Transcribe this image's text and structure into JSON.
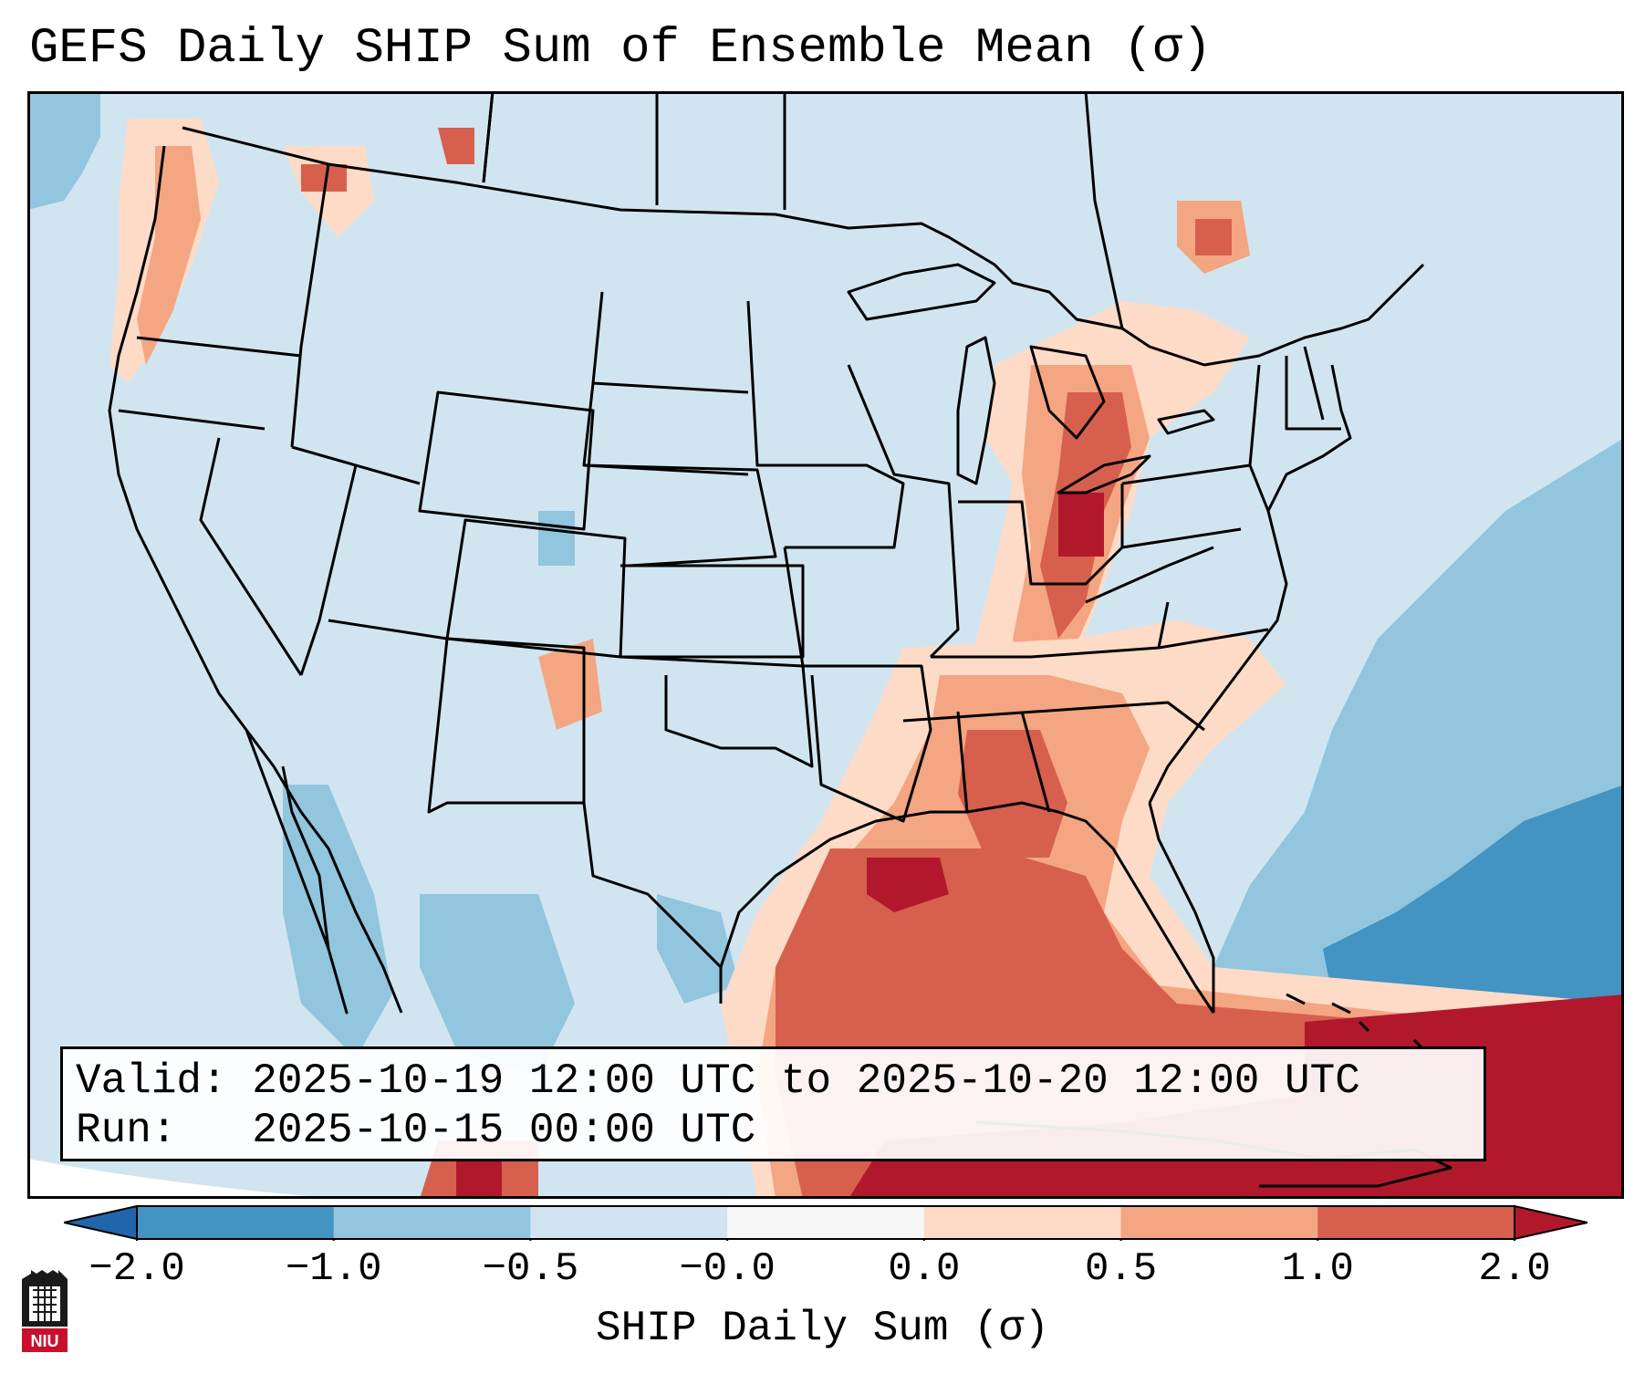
{
  "title": "GEFS Daily SHIP Sum of Ensemble Mean (σ)",
  "info": {
    "valid": "Valid: 2025-10-19 12:00 UTC to 2025-10-20 12:00 UTC",
    "run": "Run:   2025-10-15 00:00 UTC"
  },
  "colorbar": {
    "label": "SHIP Daily Sum (σ)",
    "ticks": [
      "−2.0",
      "−1.0",
      "−0.5",
      "−0.0",
      "0.0",
      "0.5",
      "1.0",
      "2.0"
    ],
    "colors": [
      "#4393c3",
      "#92c5de",
      "#d1e5f0",
      "#f7f7f7",
      "#fddbc7",
      "#f4a582",
      "#d6604d",
      "#b2182b"
    ],
    "under_color": "#2166ac",
    "over_color": "#b2182b"
  },
  "logo": {
    "icon": "niu-logo",
    "text": "NIU"
  },
  "colors": {
    "background_value": "#d1e5f0",
    "ocean_atlantic": "#92c5de",
    "ocean_atlantic_deep": "#4393c3",
    "gulf_high": "#d6604d",
    "gulf_max": "#b2182b",
    "borders": "#000000"
  }
}
